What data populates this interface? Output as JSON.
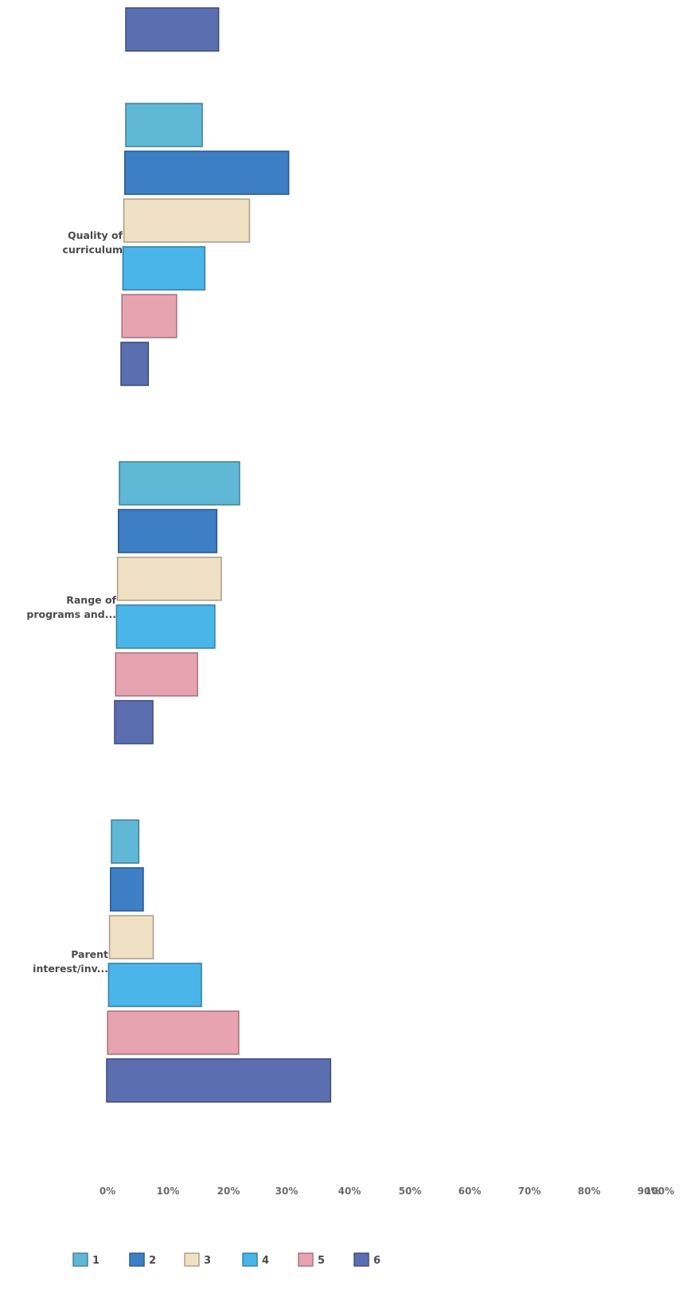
{
  "chart_data": {
    "type": "bar",
    "orientation": "horizontal",
    "x_ticks": [
      "0%",
      "10%",
      "20%",
      "30%",
      "40%",
      "50%",
      "60%",
      "70%",
      "80%",
      "90%",
      "100%"
    ],
    "xlim": [
      0,
      100
    ],
    "grid": false,
    "legend_position": "bottom",
    "categories": [
      {
        "label": "",
        "values": [
          null,
          null,
          null,
          null,
          null,
          17
        ]
      },
      {
        "label": "Quality of curriculum",
        "values": [
          14,
          30,
          23,
          15,
          10,
          5
        ]
      },
      {
        "label": "Range of programs and...",
        "values": [
          22,
          18,
          19,
          18,
          15,
          7
        ]
      },
      {
        "label": "Parent interest/inv...",
        "values": [
          5,
          6,
          8,
          17,
          24,
          41
        ]
      }
    ],
    "series": [
      {
        "name": "1",
        "color": "#5fb8d6"
      },
      {
        "name": "2",
        "color": "#3d7fc4"
      },
      {
        "name": "3",
        "color": "#f0e0c4"
      },
      {
        "name": "4",
        "color": "#4ab5e8"
      },
      {
        "name": "5",
        "color": "#e8a3b0"
      },
      {
        "name": "6",
        "color": "#5a6eb0"
      }
    ]
  }
}
